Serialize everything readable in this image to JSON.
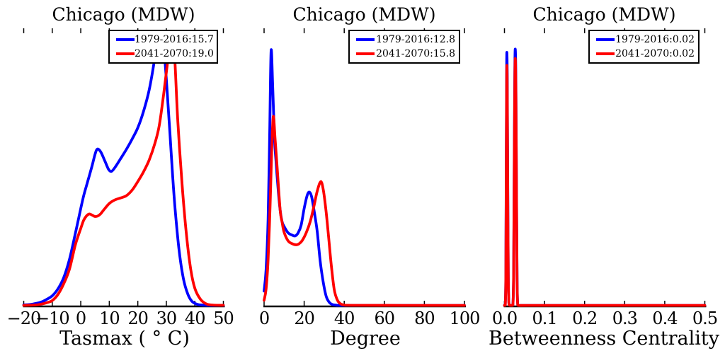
{
  "figure": {
    "background": "#ffffff",
    "text_color": "#000000",
    "axis_color": "#000000"
  },
  "colors": {
    "blue": "#0000ff",
    "red": "#ff0000"
  },
  "chart_data": [
    {
      "type": "line",
      "kind": "kde-density",
      "title": "Chicago (MDW)",
      "xlabel": "Tasmax ( ° C)",
      "xlim": [
        -20,
        50
      ],
      "xticks": [
        -20,
        -10,
        0,
        10,
        20,
        30,
        40,
        50
      ],
      "xtick_labels": [
        "−20",
        "−10",
        "0",
        "10",
        "20",
        "30",
        "40",
        "50"
      ],
      "grid": false,
      "legend_position": "upper right",
      "y_units": "relative_density_0to1",
      "series": [
        {
          "name": "1979-2016",
          "legend_label": "1979-2016:15.7",
          "value": 15.7,
          "color_key": "blue",
          "points": [
            [
              -20,
              0.002
            ],
            [
              -17,
              0.005
            ],
            [
              -14,
              0.012
            ],
            [
              -12,
              0.022
            ],
            [
              -10,
              0.035
            ],
            [
              -8,
              0.06
            ],
            [
              -6,
              0.1
            ],
            [
              -4,
              0.165
            ],
            [
              -2,
              0.255
            ],
            [
              0,
              0.35
            ],
            [
              1,
              0.395
            ],
            [
              2,
              0.432
            ],
            [
              3,
              0.468
            ],
            [
              4,
              0.505
            ],
            [
              5,
              0.545
            ],
            [
              5.8,
              0.564
            ],
            [
              7,
              0.554
            ],
            [
              8.5,
              0.52
            ],
            [
              9.8,
              0.49
            ],
            [
              10.8,
              0.484
            ],
            [
              12,
              0.498
            ],
            [
              14,
              0.53
            ],
            [
              16,
              0.563
            ],
            [
              18,
              0.6
            ],
            [
              20,
              0.641
            ],
            [
              22,
              0.7
            ],
            [
              24,
              0.778
            ],
            [
              25.8,
              0.883
            ],
            [
              26.7,
              0.955
            ],
            [
              27.6,
              0.975
            ],
            [
              28.6,
              0.942
            ],
            [
              29.5,
              0.883
            ],
            [
              30.4,
              0.755
            ],
            [
              31.3,
              0.615
            ],
            [
              32.2,
              0.47
            ],
            [
              33.1,
              0.345
            ],
            [
              34.5,
              0.197
            ],
            [
              36,
              0.096
            ],
            [
              37.5,
              0.042
            ],
            [
              39,
              0.015
            ],
            [
              41,
              0.004
            ],
            [
              43.5,
              0.001
            ],
            [
              46,
              0.0005
            ],
            [
              50,
              0.0005
            ]
          ]
        },
        {
          "name": "2041-2070",
          "legend_label": "2041-2070:19.0",
          "value": 19.0,
          "color_key": "red",
          "points": [
            [
              -20,
              0.0005
            ],
            [
              -16,
              0.002
            ],
            [
              -14,
              0.005
            ],
            [
              -12,
              0.01
            ],
            [
              -10,
              0.018
            ],
            [
              -8,
              0.04
            ],
            [
              -6,
              0.078
            ],
            [
              -4,
              0.13
            ],
            [
              -2,
              0.215
            ],
            [
              -1,
              0.248
            ],
            [
              0,
              0.278
            ],
            [
              1,
              0.307
            ],
            [
              2,
              0.323
            ],
            [
              3,
              0.33
            ],
            [
              4,
              0.326
            ],
            [
              5,
              0.321
            ],
            [
              6,
              0.323
            ],
            [
              7,
              0.331
            ],
            [
              8,
              0.344
            ],
            [
              10,
              0.368
            ],
            [
              12,
              0.381
            ],
            [
              14,
              0.388
            ],
            [
              16,
              0.396
            ],
            [
              18,
              0.416
            ],
            [
              20,
              0.447
            ],
            [
              22,
              0.482
            ],
            [
              24,
              0.525
            ],
            [
              26,
              0.585
            ],
            [
              27.5,
              0.648
            ],
            [
              29,
              0.757
            ],
            [
              30.5,
              0.883
            ],
            [
              31.4,
              0.96
            ],
            [
              32.2,
              0.985
            ],
            [
              33,
              0.883
            ],
            [
              34,
              0.669
            ],
            [
              35.5,
              0.44
            ],
            [
              37,
              0.261
            ],
            [
              38.5,
              0.134
            ],
            [
              40,
              0.062
            ],
            [
              42,
              0.022
            ],
            [
              44,
              0.006
            ],
            [
              46,
              0.002
            ],
            [
              48,
              0.001
            ],
            [
              50,
              0.001
            ]
          ]
        }
      ]
    },
    {
      "type": "line",
      "kind": "kde-density",
      "title": "Chicago (MDW)",
      "xlabel": "Degree",
      "xlim": [
        0,
        100
      ],
      "xticks": [
        0,
        20,
        40,
        60,
        80,
        100
      ],
      "xtick_labels": [
        "0",
        "20",
        "40",
        "60",
        "80",
        "100"
      ],
      "grid": false,
      "legend_position": "upper right",
      "y_units": "relative_density_0to1",
      "series": [
        {
          "name": "1979-2016",
          "legend_label": "1979-2016:12.8",
          "value": 12.8,
          "color_key": "blue",
          "points": [
            [
              0,
              0.052
            ],
            [
              1,
              0.13
            ],
            [
              2,
              0.31
            ],
            [
              2.8,
              0.62
            ],
            [
              3.5,
              0.918
            ],
            [
              4.3,
              0.79
            ],
            [
              5.2,
              0.6
            ],
            [
              6,
              0.516
            ],
            [
              7,
              0.42
            ],
            [
              8,
              0.345
            ],
            [
              9,
              0.302
            ],
            [
              10,
              0.285
            ],
            [
              12,
              0.262
            ],
            [
              14,
              0.254
            ],
            [
              15.5,
              0.251
            ],
            [
              17,
              0.262
            ],
            [
              18.5,
              0.29
            ],
            [
              20,
              0.35
            ],
            [
              21.5,
              0.397
            ],
            [
              22.6,
              0.409
            ],
            [
              23.7,
              0.393
            ],
            [
              25,
              0.34
            ],
            [
              26.5,
              0.268
            ],
            [
              28,
              0.16
            ],
            [
              29.5,
              0.085
            ],
            [
              31,
              0.033
            ],
            [
              32.5,
              0.012
            ],
            [
              34,
              0.004
            ],
            [
              36,
              0.0015
            ],
            [
              40,
              0.0005
            ],
            [
              70,
              0.0005
            ],
            [
              100,
              0.0005
            ]
          ]
        },
        {
          "name": "2041-2070",
          "legend_label": "2041-2070:15.8",
          "value": 15.8,
          "color_key": "red",
          "points": [
            [
              0,
              0.019
            ],
            [
              1,
              0.06
            ],
            [
              2,
              0.165
            ],
            [
              3,
              0.36
            ],
            [
              3.8,
              0.56
            ],
            [
              4.6,
              0.682
            ],
            [
              5.5,
              0.6
            ],
            [
              6.5,
              0.5
            ],
            [
              8,
              0.346
            ],
            [
              9,
              0.3
            ],
            [
              10,
              0.264
            ],
            [
              12,
              0.233
            ],
            [
              14,
              0.223
            ],
            [
              16,
              0.219
            ],
            [
              17.5,
              0.223
            ],
            [
              19,
              0.234
            ],
            [
              21,
              0.262
            ],
            [
              23,
              0.302
            ],
            [
              25,
              0.362
            ],
            [
              26.5,
              0.412
            ],
            [
              28.3,
              0.447
            ],
            [
              29.6,
              0.415
            ],
            [
              30.9,
              0.342
            ],
            [
              32.1,
              0.255
            ],
            [
              33.5,
              0.148
            ],
            [
              35,
              0.058
            ],
            [
              36.5,
              0.021
            ],
            [
              38,
              0.007
            ],
            [
              40,
              0.002
            ],
            [
              44,
              0.0008
            ],
            [
              70,
              0.0005
            ],
            [
              100,
              0.0005
            ]
          ]
        }
      ]
    },
    {
      "type": "line",
      "kind": "kde-density",
      "title": "Chicago (MDW)",
      "xlabel": "Betweenness Centrality",
      "xlim": [
        0,
        0.5
      ],
      "xticks": [
        0,
        0.1,
        0.2,
        0.3,
        0.4,
        0.5
      ],
      "xtick_labels": [
        "0.0",
        "0.1",
        "0.2",
        "0.3",
        "0.4",
        "0.5"
      ],
      "grid": false,
      "legend_position": "upper right",
      "y_units": "relative_density_0to1",
      "series": [
        {
          "name": "1979-2016",
          "legend_label": "1979-2016:0.02",
          "value": 0.02,
          "color_key": "blue",
          "points": [
            [
              0,
              0.0005
            ],
            [
              0.002,
              0.001
            ],
            [
              0.0035,
              0.12
            ],
            [
              0.0045,
              0.52
            ],
            [
              0.0055,
              0.86
            ],
            [
              0.0062,
              0.908
            ],
            [
              0.007,
              0.82
            ],
            [
              0.008,
              0.5
            ],
            [
              0.0095,
              0.12
            ],
            [
              0.011,
              0.01
            ],
            [
              0.013,
              0.001
            ],
            [
              0.017,
              0.0005
            ],
            [
              0.021,
              0.001
            ],
            [
              0.023,
              0.13
            ],
            [
              0.0245,
              0.56
            ],
            [
              0.026,
              0.87
            ],
            [
              0.0273,
              0.918
            ],
            [
              0.0286,
              0.79
            ],
            [
              0.03,
              0.44
            ],
            [
              0.0315,
              0.1
            ],
            [
              0.033,
              0.006
            ],
            [
              0.036,
              0.0005
            ],
            [
              0.06,
              0.0005
            ],
            [
              0.25,
              0.0005
            ],
            [
              0.5,
              0.0005
            ]
          ]
        },
        {
          "name": "2041-2070",
          "legend_label": "2041-2070:0.02",
          "value": 0.02,
          "color_key": "red",
          "points": [
            [
              0,
              0.0005
            ],
            [
              0.002,
              0.001
            ],
            [
              0.0035,
              0.11
            ],
            [
              0.0045,
              0.47
            ],
            [
              0.0055,
              0.81
            ],
            [
              0.0062,
              0.862
            ],
            [
              0.007,
              0.77
            ],
            [
              0.008,
              0.46
            ],
            [
              0.0095,
              0.11
            ],
            [
              0.011,
              0.009
            ],
            [
              0.013,
              0.001
            ],
            [
              0.017,
              0.0005
            ],
            [
              0.021,
              0.001
            ],
            [
              0.023,
              0.12
            ],
            [
              0.0245,
              0.51
            ],
            [
              0.026,
              0.83
            ],
            [
              0.0273,
              0.885
            ],
            [
              0.0286,
              0.75
            ],
            [
              0.03,
              0.41
            ],
            [
              0.0315,
              0.09
            ],
            [
              0.033,
              0.005
            ],
            [
              0.036,
              0.0005
            ],
            [
              0.06,
              0.0005
            ],
            [
              0.25,
              0.0005
            ],
            [
              0.5,
              0.0005
            ]
          ]
        }
      ]
    }
  ]
}
